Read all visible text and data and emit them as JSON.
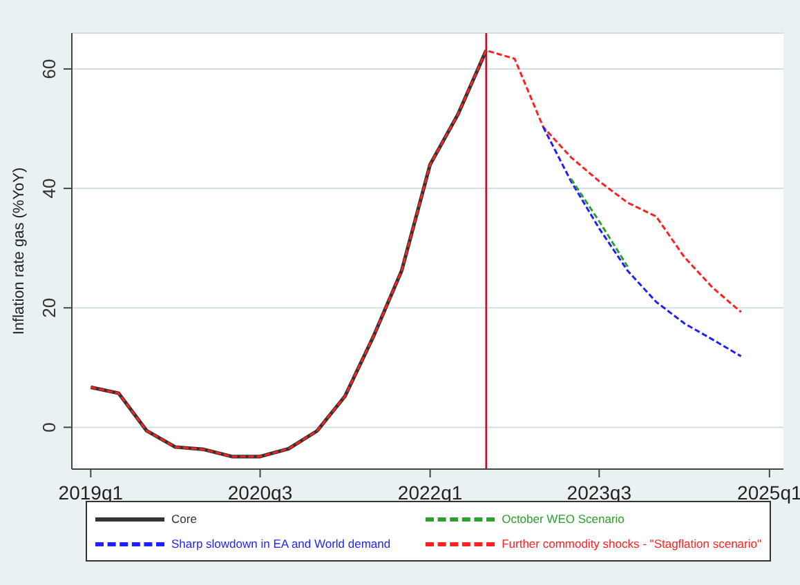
{
  "chart_data": {
    "type": "line",
    "ylabel": "Inflation rate gas (%YoY)",
    "xlim": [
      "2018-11",
      "2025-02-15"
    ],
    "xticks": [
      {
        "value": "2019-01",
        "label": "2019q1"
      },
      {
        "value": "2020-07",
        "label": "2020q3"
      },
      {
        "value": "2022-01",
        "label": "2022q1"
      },
      {
        "value": "2023-07",
        "label": "2023q3"
      },
      {
        "value": "2025-01",
        "label": "2025q1"
      }
    ],
    "ylim": [
      -7,
      66
    ],
    "yticks": [
      0,
      20,
      40,
      60
    ],
    "grid": "y",
    "legend": "bottom",
    "ref_lines": [
      {
        "axis": "x",
        "value": "2022-07",
        "color": "#c8102e",
        "line_style": "solid"
      }
    ],
    "series": [
      {
        "name": "Core",
        "color": "#333333",
        "line_style": "solid",
        "x": [
          "2019-01",
          "2019-04",
          "2019-07",
          "2019-10",
          "2020-01",
          "2020-04",
          "2020-07",
          "2020-10",
          "2021-01",
          "2021-04",
          "2021-07",
          "2021-10",
          "2022-01",
          "2022-04",
          "2022-07"
        ],
        "values": [
          6.7,
          5.7,
          -0.6,
          -3.3,
          -3.7,
          -4.9,
          -4.9,
          -3.6,
          -0.6,
          5.2,
          15.1,
          26.2,
          44,
          52.4,
          63.1
        ]
      },
      {
        "name": "October WEO Scenario",
        "color": "#2ca02c",
        "line_style": "dashed",
        "x": [
          "2023-04",
          "2023-07",
          "2023-10"
        ],
        "values": [
          41.6,
          34.5,
          26.9
        ]
      },
      {
        "name": "Sharp slowdown in EA and World demand",
        "color": "#1f1fff",
        "line_style": "dashed",
        "x": [
          "2023-01",
          "2023-04",
          "2023-07",
          "2023-10",
          "2024-01",
          "2024-04",
          "2024-07",
          "2024-10"
        ],
        "values": [
          50.3,
          41.2,
          33.3,
          26.2,
          21.0,
          17.4,
          14.7,
          11.9
        ]
      },
      {
        "name": "Further commodity shocks - \"Stagflation scenario\"",
        "color": "#ff2020",
        "line_style": "dashed",
        "x": [
          "2019-01",
          "2019-04",
          "2019-07",
          "2019-10",
          "2020-01",
          "2020-04",
          "2020-07",
          "2020-10",
          "2021-01",
          "2021-04",
          "2021-07",
          "2021-10",
          "2022-01",
          "2022-04",
          "2022-07",
          "2022-10",
          "2023-01",
          "2023-04",
          "2023-07",
          "2023-10",
          "2024-01",
          "2024-04",
          "2024-07",
          "2024-10"
        ],
        "values": [
          6.7,
          5.7,
          -0.6,
          -3.3,
          -3.7,
          -4.9,
          -4.9,
          -3.6,
          -0.6,
          5.2,
          15.1,
          26.2,
          44,
          52.4,
          63.1,
          61.7,
          50.3,
          45.2,
          41.2,
          37.6,
          35.3,
          28.5,
          23.4,
          19.3
        ]
      }
    ]
  }
}
